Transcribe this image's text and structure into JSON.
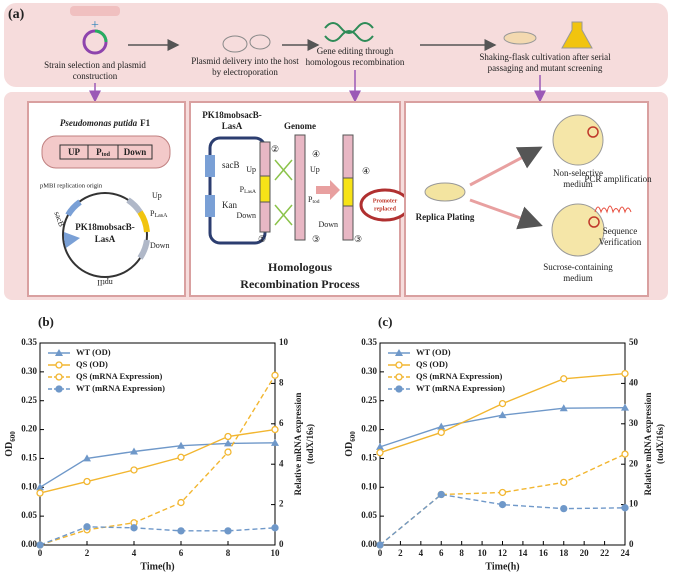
{
  "panel_a": {
    "label": "(a)",
    "steps": [
      [
        "Strain selection and plasmid",
        "construction"
      ],
      [
        "Plasmid delivery into the host",
        "by electroporation"
      ],
      [
        "Gene editing through",
        "homologous recombination"
      ],
      [
        "Shaking-flask cultivation  after serial",
        "passaging and mutant screening"
      ]
    ],
    "box1": {
      "organism": {
        "italic": "Pseudomonas putida",
        "plain": "F1"
      },
      "cassette": [
        "UP",
        {
          "main": "P",
          "sub": "tod"
        },
        "Down"
      ],
      "origin": "pMBI replication origin",
      "plasmid_name": [
        "PK18mobsacB-",
        "LasA"
      ],
      "plasmid_labels": [
        "Up",
        {
          "main": "P",
          "sub": "LasA"
        },
        "Down",
        "sacB",
        "nptII"
      ]
    },
    "box2": {
      "vector": [
        "PK18mobsacB-",
        "LasA"
      ],
      "genome": "Genome",
      "markers": [
        "sacB",
        "Kan"
      ],
      "insert": [
        "Up",
        {
          "main": "P",
          "sub": "LasA"
        },
        "Down"
      ],
      "plasmid_sites": [
        "①",
        "②"
      ],
      "genome_labels": [
        "④",
        "Up",
        {
          "main": "P",
          "sub": "tod"
        },
        "③"
      ],
      "result_labels": [
        "④",
        "Down",
        "③"
      ],
      "badge": [
        "Promoter",
        "replaced"
      ],
      "title": [
        "Homologous",
        "Recombination Process"
      ]
    },
    "box3": {
      "replica": "Replica Plating",
      "plate1": [
        "Non-selective",
        "medium"
      ],
      "plate2": [
        "Sucrose-containing",
        "medium"
      ],
      "pcr": "PCR amplification",
      "seq": [
        "Sequence",
        "Verification"
      ]
    }
  },
  "chart_data": [
    {
      "type": "line",
      "panel_label": "(b)",
      "xlabel": "Time(h)",
      "ylabel": {
        "main": "OD",
        "sub": "600"
      },
      "y2label": [
        "Relative mRNA expression",
        "(todX/16s)"
      ],
      "x": [
        0,
        2,
        4,
        6,
        8,
        10
      ],
      "xlim": [
        0,
        10
      ],
      "xticks": [
        0,
        2,
        4,
        6,
        8,
        10
      ],
      "ylim": [
        0,
        0.35
      ],
      "yticks": [
        {
          "value": 0,
          "label": "0.00"
        },
        0.05,
        {
          "value": 0.1,
          "label": "0.10"
        },
        0.15,
        {
          "value": 0.2,
          "label": "0.20"
        },
        0.25,
        {
          "value": 0.3,
          "label": "0.30"
        },
        0.35
      ],
      "y2lim": [
        0,
        10
      ],
      "y2ticks": [
        0,
        2,
        4,
        6,
        8,
        10
      ],
      "legend": "upper left",
      "series": [
        {
          "name": "WT (OD)",
          "color": "#6f98c9",
          "marker": "triangle",
          "dash": false,
          "values": [
            0.1,
            0.15,
            0.162,
            0.172,
            0.176,
            0.177
          ]
        },
        {
          "name": "QS (OD)",
          "color": "#f2b630",
          "marker": "open-circle",
          "dash": false,
          "values": [
            0.09,
            0.11,
            0.13,
            0.152,
            0.188,
            0.2
          ]
        },
        {
          "name": "QS (mRNA Expression)",
          "color": "#f2b630",
          "marker": "open-circle",
          "dash": true,
          "axis": "y2",
          "values": [
            0,
            0.75,
            1.1,
            2.1,
            4.6,
            8.4
          ]
        },
        {
          "name": "WT (mRNA Expression)",
          "color": "#6f98c9",
          "marker": "circle",
          "dash": true,
          "axis": "y2",
          "values": [
            0,
            0.9,
            0.85,
            0.7,
            0.7,
            0.85
          ]
        }
      ]
    },
    {
      "type": "line",
      "panel_label": "(c)",
      "xlabel": "Time(h)",
      "ylabel": {
        "main": "OD",
        "sub": "600"
      },
      "y2label": [
        "Relative mRNA expression",
        "(todX/16s)"
      ],
      "x": [
        0,
        6,
        12,
        18,
        24
      ],
      "xlim": [
        0,
        24
      ],
      "xticks": [
        0,
        2,
        4,
        6,
        8,
        10,
        12,
        14,
        16,
        18,
        20,
        22,
        24
      ],
      "ylim": [
        0,
        0.35
      ],
      "yticks": [
        {
          "value": 0,
          "label": "0.00"
        },
        0.05,
        {
          "value": 0.1,
          "label": "0.10"
        },
        0.15,
        {
          "value": 0.2,
          "label": "0.20"
        },
        0.25,
        {
          "value": 0.3,
          "label": "0.30"
        },
        0.35
      ],
      "y2lim": [
        0,
        50
      ],
      "y2ticks": [
        0,
        10,
        20,
        30,
        40,
        50
      ],
      "legend": "upper left",
      "series": [
        {
          "name": "WT (OD)",
          "color": "#6f98c9",
          "marker": "triangle",
          "dash": false,
          "values": [
            0.17,
            0.205,
            0.225,
            0.237,
            0.238
          ]
        },
        {
          "name": "QS (OD)",
          "color": "#f2b630",
          "marker": "open-circle",
          "dash": false,
          "values": [
            0.16,
            0.195,
            0.245,
            0.288,
            0.297
          ]
        },
        {
          "name": "QS (mRNA Expression)",
          "color": "#f2b630",
          "marker": "open-circle",
          "dash": true,
          "axis": "y2",
          "values": [
            0,
            12.5,
            13,
            15.5,
            22.5
          ]
        },
        {
          "name": "WT (mRNA Expression)",
          "color": "#6f98c9",
          "marker": "circle",
          "dash": true,
          "axis": "y2",
          "values": [
            0,
            12.5,
            10,
            9,
            9.2
          ]
        }
      ]
    }
  ]
}
